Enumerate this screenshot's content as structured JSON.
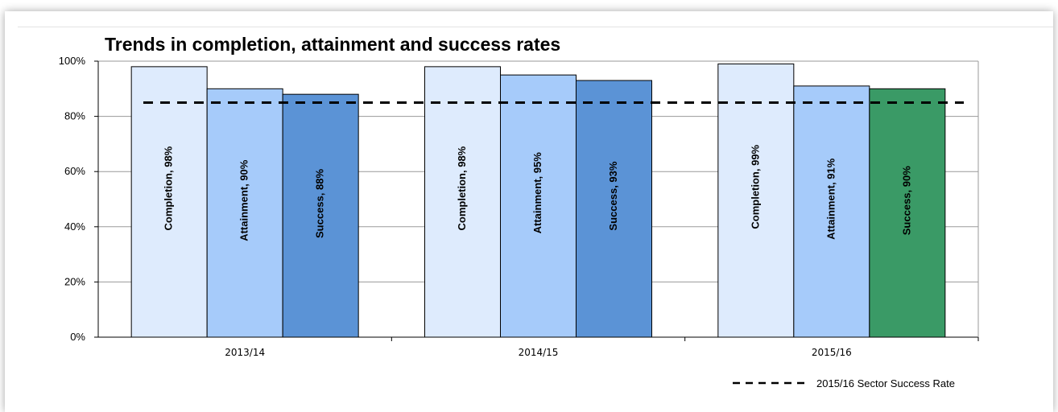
{
  "chart_data": {
    "type": "bar",
    "title": "Trends in completion, attainment and success rates",
    "categories": [
      "2013/14",
      "2014/15",
      "2015/16"
    ],
    "series": [
      {
        "labels": [
          "Completion, 98%",
          "Completion, 98%",
          "Completion, 99%"
        ],
        "values": [
          98,
          98,
          99
        ],
        "colors": [
          "#deebfd",
          "#deebfd",
          "#deebfd"
        ]
      },
      {
        "labels": [
          "Attainment, 90%",
          "Attainment, 95%",
          "Attainment, 91%"
        ],
        "values": [
          90,
          95,
          91
        ],
        "colors": [
          "#a6cbfa",
          "#a6cbfa",
          "#a6cbfa"
        ]
      },
      {
        "labels": [
          "Success, 88%",
          "Success, 93%",
          "Success, 90%"
        ],
        "values": [
          88,
          93,
          90
        ],
        "colors": [
          "#5b93d6",
          "#5b93d6",
          "#3a9a66"
        ]
      }
    ],
    "reference_line": {
      "name": "2015/16 Sector Success Rate",
      "value": 85,
      "style": "dashed",
      "color": "#000000"
    },
    "yticks": [
      "0%",
      "20%",
      "40%",
      "60%",
      "80%",
      "100%"
    ],
    "ylim": [
      0,
      100
    ],
    "grid": true,
    "legend": "bottom-right"
  }
}
